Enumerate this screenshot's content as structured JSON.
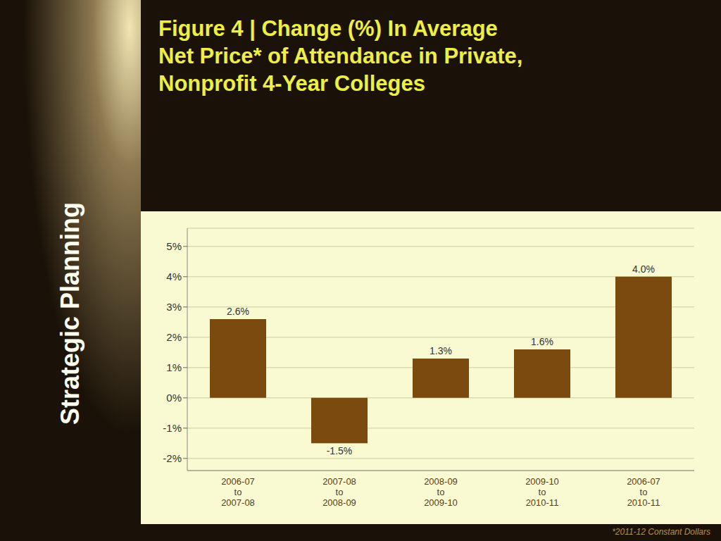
{
  "chart_data": {
    "type": "bar",
    "title": "Figure 4 | Change (%) In Average\nNet Price* of Attendance in Private,\nNonprofit 4-Year Colleges",
    "categories": [
      "2006-07\nto\n2007-08",
      "2007-08\nto\n2008-09",
      "2008-09\nto\n2009-10",
      "2009-10\nto\n2010-11",
      "2006-07\nto\n2010-11"
    ],
    "values": [
      2.6,
      -1.5,
      1.3,
      1.6,
      4.0
    ],
    "value_labels": [
      "2.6%",
      "-1.5%",
      "1.3%",
      "1.6%",
      "4.0%"
    ],
    "color": "#7B4A0E",
    "ylim": [
      -2.4,
      5.6
    ],
    "yticks": [
      {
        "value": -2,
        "label": "-2%"
      },
      {
        "value": -1,
        "label": "-1%"
      },
      {
        "value": 0,
        "label": "0%"
      },
      {
        "value": 1,
        "label": "1%"
      },
      {
        "value": 2,
        "label": "2%"
      },
      {
        "value": 3,
        "label": "3%"
      },
      {
        "value": 4,
        "label": "4%"
      },
      {
        "value": 5,
        "label": "5%"
      }
    ],
    "grid": true,
    "data_labels": true,
    "annotations": [
      "Strategic Planning",
      "*2011-12 Constant Dollars"
    ]
  }
}
